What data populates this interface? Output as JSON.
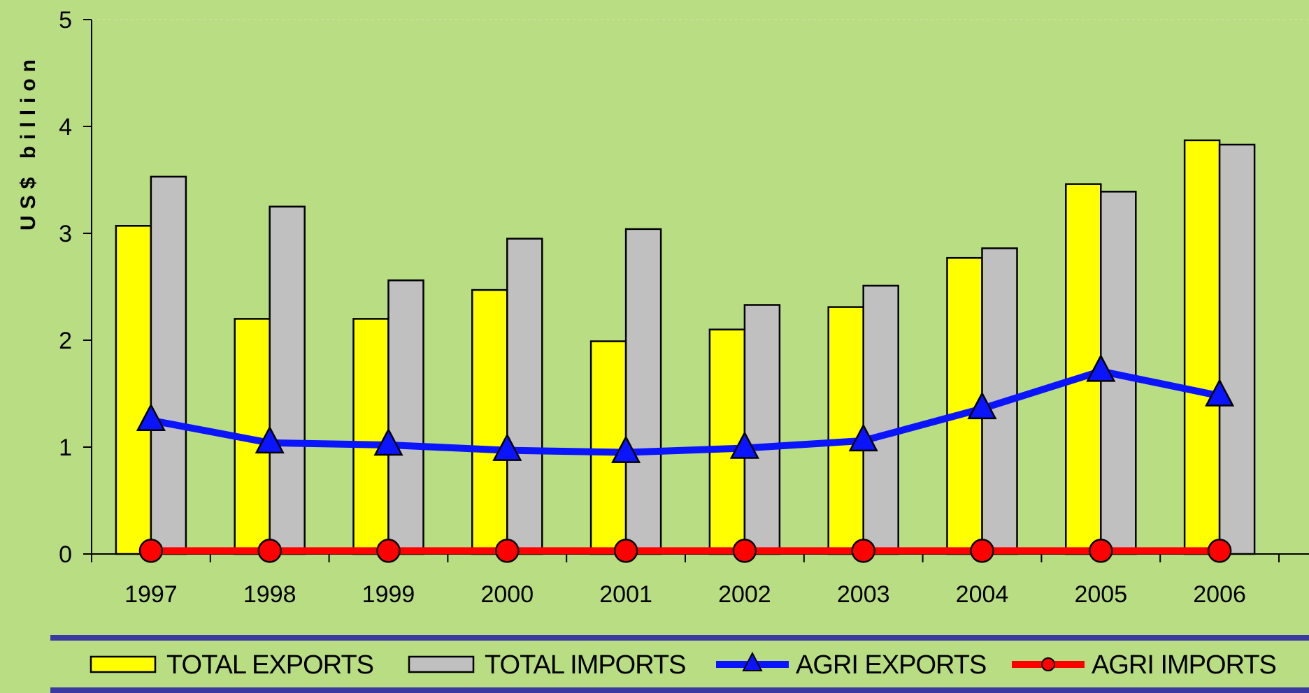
{
  "chart_data": {
    "type": "bar",
    "ylabel": "US$  billion",
    "ylim": [
      0,
      5
    ],
    "yticks": [
      "0",
      "1",
      "2",
      "3",
      "4",
      "5"
    ],
    "grid": false,
    "legend_placement": "bottom",
    "categories": [
      "1997",
      "1998",
      "1999",
      "2000",
      "2001",
      "2002",
      "2003",
      "2004",
      "2005",
      "2006"
    ],
    "series": [
      {
        "name": "TOTAL EXPORTS",
        "kind": "bar",
        "color": "#ffff00",
        "values": [
          3.07,
          2.2,
          2.2,
          2.47,
          1.99,
          2.1,
          2.31,
          2.77,
          3.46,
          3.87
        ]
      },
      {
        "name": "TOTAL IMPORTS",
        "kind": "bar",
        "color": "#c0c0c0",
        "values": [
          3.53,
          3.25,
          2.56,
          2.95,
          3.04,
          2.33,
          2.51,
          2.86,
          3.39,
          3.83
        ]
      },
      {
        "name": "AGRI EXPORTS",
        "kind": "line",
        "marker": "triangle",
        "color": "#0a14ff",
        "values": [
          1.25,
          1.04,
          1.02,
          0.97,
          0.95,
          0.99,
          1.06,
          1.36,
          1.71,
          1.48
        ]
      },
      {
        "name": "AGRI IMPORTS",
        "kind": "line",
        "marker": "circle",
        "color": "#ff0000",
        "values": [
          0.03,
          0.03,
          0.03,
          0.03,
          0.03,
          0.03,
          0.03,
          0.03,
          0.03,
          0.03
        ]
      }
    ]
  },
  "colors": {
    "background": "#b9dd82",
    "legend_rule": "#3a3aa0",
    "axis": "#000000"
  }
}
